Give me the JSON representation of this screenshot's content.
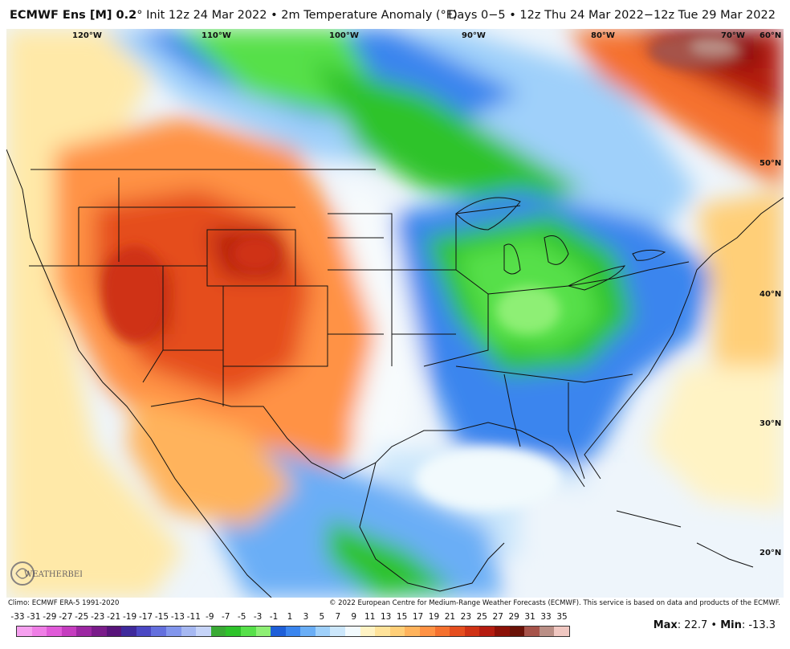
{
  "header": {
    "model": "ECMWF Ens [M] 0.2",
    "degree": "°",
    "init": " Init 12z 24 Mar 2022 • 2m Temperature Anomaly (°F)",
    "valid": "Days 0−5 • 12z Thu 24 Mar 2022−12z Tue 29 Mar 2022"
  },
  "map": {
    "longitude_labels": [
      "120°W",
      "110°W",
      "100°W",
      "90°W",
      "80°W",
      "70°W",
      "60°N"
    ],
    "latitude_labels": [
      "50°N",
      "40°N",
      "30°N",
      "20°N"
    ],
    "logo_text": "WEATHERBELL"
  },
  "footer": {
    "climo": "Climo: ECMWF ERA-5 1991-2020",
    "copyright": "© 2022 European Centre for Medium-Range Weather Forecasts (ECMWF). This service is based on data and products of the ECMWF."
  },
  "colorbar": {
    "labels": [
      "-33",
      "-31",
      "-29",
      "-27",
      "-25",
      "-23",
      "-21",
      "-19",
      "-17",
      "-15",
      "-13",
      "-11",
      "-9",
      "-7",
      "-5",
      "-3",
      "-1",
      "1",
      "3",
      "5",
      "7",
      "9",
      "11",
      "13",
      "15",
      "17",
      "19",
      "21",
      "23",
      "25",
      "27",
      "29",
      "31",
      "33",
      "35"
    ],
    "colors": [
      "#f6a0ef",
      "#ef7ee6",
      "#e05ad8",
      "#c53dbf",
      "#9c27a2",
      "#7a1c8a",
      "#58147a",
      "#3f2a9c",
      "#4b48c4",
      "#6470de",
      "#8296ec",
      "#a6b8f2",
      "#c6d4f8",
      "#3aaa35",
      "#2ec32b",
      "#57e04a",
      "#8eef75",
      "#1e5fd8",
      "#3a85ee",
      "#6aaef6",
      "#9fd0fa",
      "#cce7fb",
      "#f2fafd",
      "#fff3c4",
      "#ffe39a",
      "#ffcf78",
      "#ffb35c",
      "#ff9244",
      "#f5712f",
      "#e54e1f",
      "#cf3215",
      "#b51c10",
      "#8c1108",
      "#6a1208",
      "#a6534a",
      "#ba8f86",
      "#f0c7c1"
    ]
  },
  "stats": {
    "max_label": "Max",
    "max_value": ": 22.7 • ",
    "min_label": "Min",
    "min_value": ": -13.3"
  }
}
